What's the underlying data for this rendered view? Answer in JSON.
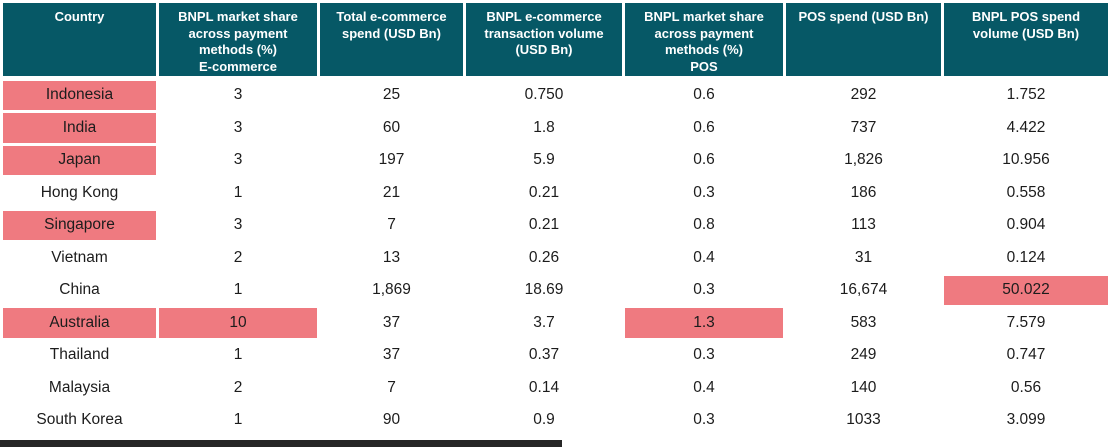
{
  "colors": {
    "header_bg": "#065866",
    "header_text": "#ffffff",
    "highlight_pink": "#ef7a80",
    "body_text": "#1c1c1c",
    "bottom_bar": "#262626"
  },
  "chart_data": {
    "type": "table",
    "title": "",
    "columns": [
      {
        "id": "country",
        "label": "Country"
      },
      {
        "id": "bnpl-ecommerce-share",
        "label": "BNPL market share\nacross payment\nmethods  (%)\nE-commerce"
      },
      {
        "id": "total-ecommerce-spend",
        "label": "Total e-commerce\nspend (USD Bn)"
      },
      {
        "id": "bnpl-ecommerce-volume",
        "label": "BNPL e-commerce\ntransaction volume\n(USD Bn)"
      },
      {
        "id": "bnpl-pos-share",
        "label": "BNPL market share\nacross payment\nmethods  (%)\nPOS"
      },
      {
        "id": "pos-spend",
        "label": "POS spend (USD Bn)"
      },
      {
        "id": "bnpl-pos-volume",
        "label": "BNPL POS spend\nvolume (USD Bn)"
      }
    ],
    "rows": [
      {
        "cells": [
          "Indonesia",
          "3",
          "25",
          "0.750",
          "0.6",
          "292",
          "1.752"
        ],
        "highlights": [
          0
        ]
      },
      {
        "cells": [
          "India",
          "3",
          "60",
          "1.8",
          "0.6",
          "737",
          "4.422"
        ],
        "highlights": [
          0
        ]
      },
      {
        "cells": [
          "Japan",
          "3",
          "197",
          "5.9",
          "0.6",
          "1,826",
          "10.956"
        ],
        "highlights": [
          0
        ]
      },
      {
        "cells": [
          "Hong Kong",
          "1",
          "21",
          "0.21",
          "0.3",
          "186",
          "0.558"
        ],
        "highlights": []
      },
      {
        "cells": [
          "Singapore",
          "3",
          "7",
          "0.21",
          "0.8",
          "113",
          "0.904"
        ],
        "highlights": [
          0
        ]
      },
      {
        "cells": [
          "Vietnam",
          "2",
          "13",
          "0.26",
          "0.4",
          "31",
          "0.124"
        ],
        "highlights": []
      },
      {
        "cells": [
          "China",
          "1",
          "1,869",
          "18.69",
          "0.3",
          "16,674",
          "50.022"
        ],
        "highlights": [
          6
        ]
      },
      {
        "cells": [
          "Australia",
          "10",
          "37",
          "3.7",
          "1.3",
          "583",
          "7.579"
        ],
        "highlights": [
          0,
          1,
          4
        ]
      },
      {
        "cells": [
          "Thailand",
          "1",
          "37",
          "0.37",
          "0.3",
          "249",
          "0.747"
        ],
        "highlights": []
      },
      {
        "cells": [
          "Malaysia",
          "2",
          "7",
          "0.14",
          "0.4",
          "140",
          "0.56"
        ],
        "highlights": []
      },
      {
        "cells": [
          "South Korea",
          "1",
          "90",
          "0.9",
          "0.3",
          "1033",
          "3.099"
        ],
        "highlights": []
      }
    ],
    "legend": "pink cells mark highlighted values",
    "grid": "header separators only"
  }
}
